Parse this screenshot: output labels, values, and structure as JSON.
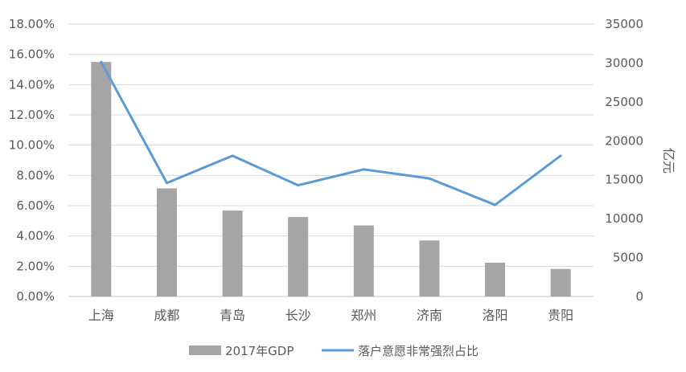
{
  "chart_data": {
    "type": "bar+line",
    "categories": [
      "上海",
      "成都",
      "青岛",
      "长沙",
      "郑州",
      "济南",
      "洛阳",
      "贵阳"
    ],
    "series": [
      {
        "name": "2017年GDP",
        "type": "bar",
        "axis": "right",
        "color": "#a5a5a5",
        "values": [
          30133,
          13889,
          11037,
          10210,
          9130,
          7202,
          4343,
          3538
        ]
      },
      {
        "name": "落户意愿非常强烈占比",
        "type": "line",
        "axis": "left",
        "color": "#5b9bd5",
        "values": [
          15.5,
          7.5,
          9.3,
          7.35,
          8.4,
          7.8,
          6.05,
          9.3
        ]
      }
    ],
    "left_axis": {
      "ylim": [
        0,
        18
      ],
      "ticks": [
        "0.00%",
        "2.00%",
        "4.00%",
        "6.00%",
        "8.00%",
        "10.00%",
        "12.00%",
        "14.00%",
        "16.00%",
        "18.00%"
      ]
    },
    "right_axis": {
      "label": "亿元",
      "ylim": [
        0,
        35000
      ],
      "ticks": [
        "0",
        "5000",
        "10000",
        "15000",
        "20000",
        "25000",
        "30000",
        "35000"
      ]
    },
    "grid": true,
    "legend": "bottom"
  }
}
